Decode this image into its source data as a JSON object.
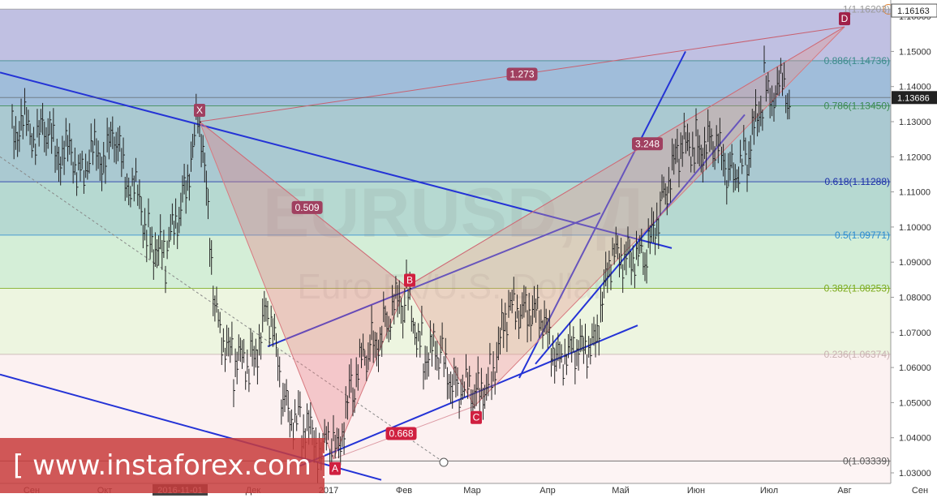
{
  "chart_data": {
    "type": "line",
    "symbol": "EURUSD, Д",
    "description": "Euro Fx/U.S. Dollar",
    "price_axis": {
      "ticks": [
        "1.03000",
        "1.04000",
        "1.05000",
        "1.06000",
        "1.07000",
        "1.08000",
        "1.09000",
        "1.10000",
        "1.11000",
        "1.12000",
        "1.13000",
        "1.14000",
        "1.15000",
        "1.16000"
      ],
      "ylim": [
        1.027,
        1.164
      ],
      "current_price": "1.13686",
      "top_badge": "1.16163"
    },
    "time_axis": {
      "ticks": [
        "Сен",
        "Окт",
        "2016-11-01",
        "Дек",
        "2017",
        "Фев",
        "Мар",
        "Апр",
        "Май",
        "Июн",
        "Июл",
        "Авг",
        "Сен"
      ],
      "highlighted": "2016-11-01"
    },
    "fib_levels": [
      {
        "label": "1(1.16203)",
        "value": 1.16203,
        "color": "#9a9a9a"
      },
      {
        "label": "0.886(1.14736)",
        "value": 1.14736,
        "color": "#3a8a8a"
      },
      {
        "label": "0.786(1.13450)",
        "value": 1.1345,
        "color": "#3a8a50"
      },
      {
        "label": "0.618(1.11288)",
        "value": 1.11288,
        "color": "#1a2ea8"
      },
      {
        "label": "0.5(1.09771)",
        "value": 1.09771,
        "color": "#2a8ad0"
      },
      {
        "label": "0.382(1.08253)",
        "value": 1.08253,
        "color": "#7aaa1a"
      },
      {
        "label": "0.236(1.06374)",
        "value": 1.06374,
        "color": "#c8b0b0"
      },
      {
        "label": "0(1.03339)",
        "value": 1.03339,
        "color": "#555555"
      }
    ],
    "pattern_points": [
      {
        "label": "X",
        "date": "2016-11-09",
        "price": 1.13
      },
      {
        "label": "A",
        "date": "2017-01-03",
        "price": 1.034
      },
      {
        "label": "B",
        "date": "2017-02-02",
        "price": 1.083
      },
      {
        "label": "C",
        "date": "2017-03-02",
        "price": 1.049
      },
      {
        "label": "D",
        "date": "2017-08-01",
        "price": 1.157
      }
    ],
    "ratios": [
      "1.273",
      "0.509",
      "3.248",
      "0.668"
    ],
    "series": [
      {
        "values": [
          {
            "date": "2016-08-24",
            "price": 1.13
          },
          {
            "date": "2016-09-07",
            "price": 1.125
          },
          {
            "date": "2016-09-21",
            "price": 1.118
          },
          {
            "date": "2016-10-05",
            "price": 1.123
          },
          {
            "date": "2016-10-19",
            "price": 1.1
          },
          {
            "date": "2016-10-26",
            "price": 1.089
          },
          {
            "date": "2016-11-02",
            "price": 1.11
          },
          {
            "date": "2016-11-09",
            "price": 1.13
          },
          {
            "date": "2016-11-16",
            "price": 1.075
          },
          {
            "date": "2016-11-23",
            "price": 1.06
          },
          {
            "date": "2016-11-30",
            "price": 1.062
          },
          {
            "date": "2016-12-07",
            "price": 1.076
          },
          {
            "date": "2016-12-14",
            "price": 1.05
          },
          {
            "date": "2016-12-21",
            "price": 1.043
          },
          {
            "date": "2017-01-03",
            "price": 1.034
          },
          {
            "date": "2017-01-11",
            "price": 1.055
          },
          {
            "date": "2017-01-18",
            "price": 1.065
          },
          {
            "date": "2017-01-25",
            "price": 1.074
          },
          {
            "date": "2017-02-02",
            "price": 1.08
          },
          {
            "date": "2017-02-09",
            "price": 1.065
          },
          {
            "date": "2017-02-16",
            "price": 1.062
          },
          {
            "date": "2017-02-23",
            "price": 1.056
          },
          {
            "date": "2017-03-02",
            "price": 1.05
          },
          {
            "date": "2017-03-09",
            "price": 1.06
          },
          {
            "date": "2017-03-16",
            "price": 1.074
          },
          {
            "date": "2017-03-23",
            "price": 1.08
          },
          {
            "date": "2017-03-30",
            "price": 1.07
          },
          {
            "date": "2017-04-06",
            "price": 1.065
          },
          {
            "date": "2017-04-13",
            "price": 1.062
          },
          {
            "date": "2017-04-20",
            "price": 1.07
          },
          {
            "date": "2017-04-27",
            "price": 1.088
          },
          {
            "date": "2017-05-04",
            "price": 1.095
          },
          {
            "date": "2017-05-11",
            "price": 1.088
          },
          {
            "date": "2017-05-18",
            "price": 1.11
          },
          {
            "date": "2017-05-25",
            "price": 1.12
          },
          {
            "date": "2017-06-01",
            "price": 1.125
          },
          {
            "date": "2017-06-08",
            "price": 1.122
          },
          {
            "date": "2017-06-15",
            "price": 1.117
          },
          {
            "date": "2017-06-22",
            "price": 1.118
          },
          {
            "date": "2017-06-29",
            "price": 1.14
          },
          {
            "date": "2017-07-03",
            "price": 1.14
          },
          {
            "date": "2017-07-10",
            "price": 1.137
          }
        ]
      }
    ]
  },
  "watermark": {
    "text": "[ www.instaforex.com ]"
  }
}
